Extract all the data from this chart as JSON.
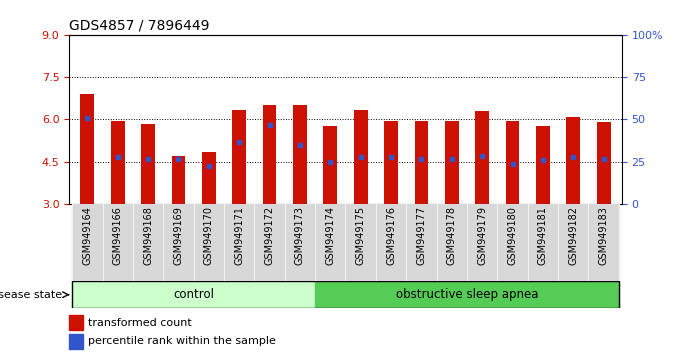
{
  "title": "GDS4857 / 7896449",
  "samples": [
    "GSM949164",
    "GSM949166",
    "GSM949168",
    "GSM949169",
    "GSM949170",
    "GSM949171",
    "GSM949172",
    "GSM949173",
    "GSM949174",
    "GSM949175",
    "GSM949176",
    "GSM949177",
    "GSM949178",
    "GSM949179",
    "GSM949180",
    "GSM949181",
    "GSM949182",
    "GSM949183"
  ],
  "bar_values": [
    6.9,
    5.95,
    5.85,
    4.7,
    4.85,
    6.35,
    6.5,
    6.5,
    5.75,
    6.35,
    5.95,
    5.95,
    5.95,
    6.3,
    5.95,
    5.75,
    6.1,
    5.9
  ],
  "blue_dot_values": [
    6.05,
    4.65,
    4.6,
    4.6,
    4.35,
    5.2,
    5.8,
    5.1,
    4.5,
    4.65,
    4.65,
    4.6,
    4.6,
    4.7,
    4.4,
    4.55,
    4.65,
    4.6
  ],
  "bar_bottom": 3.0,
  "ylim_left": [
    3.0,
    9.0
  ],
  "ylim_right": [
    0,
    100
  ],
  "yticks_left": [
    3,
    4.5,
    6,
    7.5,
    9
  ],
  "yticks_right": [
    0,
    25,
    50,
    75,
    100
  ],
  "grid_lines": [
    4.5,
    6.0,
    7.5
  ],
  "bar_color": "#cc1100",
  "blue_dot_color": "#3355cc",
  "n_control": 8,
  "n_osa": 10,
  "control_label": "control",
  "osa_label": "obstructive sleep apnea",
  "control_color": "#ccffcc",
  "osa_color": "#55cc55",
  "disease_state_label": "disease state",
  "legend_bar_label": "transformed count",
  "legend_dot_label": "percentile rank within the sample",
  "title_fontsize": 10,
  "tick_label_fontsize": 7,
  "axis_tick_fontsize": 8,
  "xlim": [
    -0.6,
    17.6
  ]
}
